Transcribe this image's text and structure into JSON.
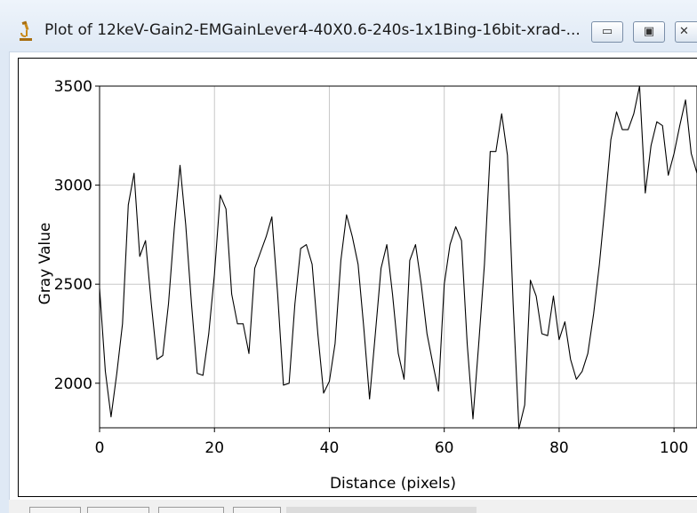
{
  "window": {
    "title": "Plot of 12keV-Gain2-EMGainLever4-40X0.6-240s-1x1Bing-16bit-xrad-...",
    "icon": "microscope-icon",
    "controls": {
      "minimize_glyph": "▭",
      "maximize_glyph": "▣",
      "close_glyph": "✕"
    }
  },
  "toolbar": {
    "buttons": [
      "",
      "",
      "",
      ""
    ]
  },
  "colors": {
    "titlebar": "#dfe9f5",
    "plot_line": "#000000",
    "grid": "#c8c8c8"
  },
  "chart_data": {
    "type": "line",
    "xlabel": "Distance (pixels)",
    "ylabel": "Gray Value",
    "xlim": [
      0,
      104
    ],
    "ylim": [
      1775,
      3500
    ],
    "xticks": [
      0,
      20,
      40,
      60,
      80,
      100
    ],
    "yticks": [
      2000,
      2500,
      3000,
      3500
    ],
    "grid": true,
    "legend": "none",
    "series": [
      {
        "x": [
          0,
          1,
          2,
          3,
          4,
          5,
          6,
          7,
          8,
          9,
          10,
          11,
          12,
          13,
          14,
          15,
          16,
          17,
          18,
          19,
          20,
          21,
          22,
          23,
          24,
          25,
          26,
          27,
          28,
          29,
          30,
          31,
          32,
          33,
          34,
          35,
          36,
          37,
          38,
          39,
          40,
          41,
          42,
          43,
          44,
          45,
          46,
          47,
          48,
          49,
          50,
          51,
          52,
          53,
          54,
          55,
          56,
          57,
          58,
          59,
          60,
          61,
          62,
          63,
          64,
          65,
          66,
          67,
          68,
          69,
          70,
          71,
          72,
          73,
          74,
          75,
          76,
          77,
          78,
          79,
          80,
          81,
          82,
          83,
          84,
          85,
          86,
          87,
          88,
          89,
          90,
          91,
          92,
          93,
          94,
          95,
          96,
          97,
          98,
          99,
          100,
          101,
          102,
          103,
          104
        ],
        "y": [
          2480,
          2060,
          1830,
          2050,
          2300,
          2900,
          3060,
          2640,
          2720,
          2400,
          2120,
          2140,
          2400,
          2780,
          3100,
          2800,
          2400,
          2050,
          2040,
          2250,
          2550,
          2950,
          2880,
          2450,
          2300,
          2300,
          2150,
          2580,
          2660,
          2740,
          2840,
          2450,
          1990,
          2000,
          2400,
          2680,
          2700,
          2600,
          2250,
          1950,
          2010,
          2200,
          2620,
          2850,
          2740,
          2600,
          2280,
          1920,
          2250,
          2580,
          2700,
          2450,
          2150,
          2020,
          2620,
          2700,
          2500,
          2250,
          2100,
          1960,
          2500,
          2700,
          2790,
          2720,
          2200,
          1820,
          2200,
          2600,
          3170,
          3170,
          3360,
          3150,
          2400,
          1770,
          1890,
          2520,
          2440,
          2250,
          2240,
          2440,
          2220,
          2310,
          2120,
          2020,
          2060,
          2150,
          2350,
          2600,
          2900,
          3230,
          3370,
          3280,
          3280,
          3360,
          3500,
          2960,
          3200,
          3320,
          3300,
          3050,
          3160,
          3300,
          3430,
          3160,
          3060
        ]
      }
    ]
  }
}
